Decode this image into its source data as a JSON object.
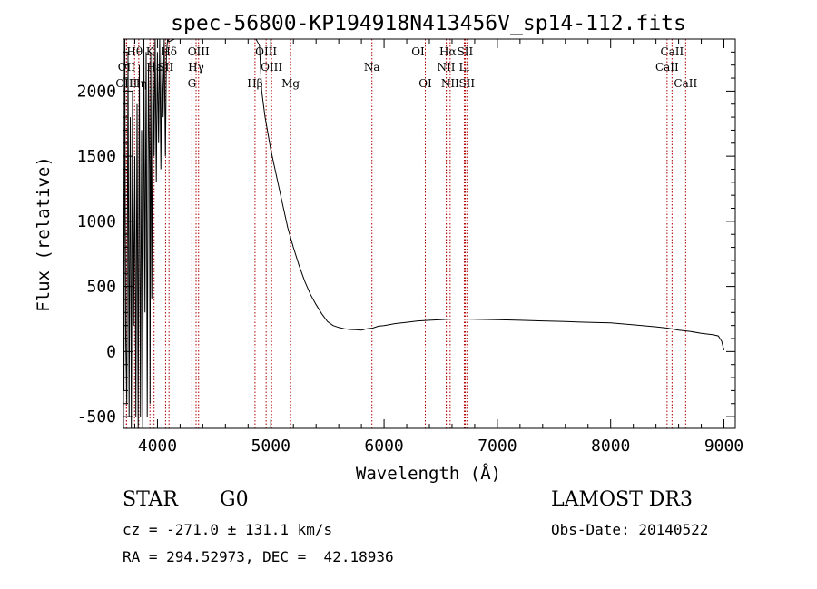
{
  "chart_data": {
    "type": "line",
    "title": "spec-56800-KP194918N413456V_sp14-112.fits",
    "xlabel": "Wavelength (Å)",
    "ylabel": "Flux (relative)",
    "xlim": [
      3700,
      9100
    ],
    "ylim": [
      -590,
      2400
    ],
    "xticks": [
      4000,
      5000,
      6000,
      7000,
      8000,
      9000
    ],
    "yticks": [
      -500,
      0,
      500,
      1000,
      1500,
      2000
    ],
    "grid": false,
    "series": [
      {
        "name": "flux",
        "x": [
          3700,
          3705,
          3712,
          3720,
          3730,
          3740,
          3750,
          3760,
          3770,
          3780,
          3790,
          3800,
          3810,
          3820,
          3830,
          3840,
          3850,
          3860,
          3870,
          3880,
          3890,
          3900,
          3910,
          3920,
          3930,
          3935,
          3940,
          3950,
          3960,
          3970,
          3980,
          3990,
          4000,
          4010,
          4020,
          4030,
          4040,
          4050,
          4060,
          4070,
          4080,
          4090,
          4100,
          4150,
          4200,
          4250,
          4300,
          4350,
          4400,
          4450,
          4500,
          4550,
          4600,
          4650,
          4700,
          4750,
          4800,
          4850,
          4870,
          4900,
          4920,
          4950,
          5000,
          5050,
          5100,
          5150,
          5200,
          5250,
          5300,
          5350,
          5400,
          5450,
          5500,
          5550,
          5600,
          5650,
          5700,
          5750,
          5800,
          5850,
          5900,
          5950,
          6000,
          6100,
          6200,
          6300,
          6400,
          6500,
          6600,
          6700,
          6800,
          7000,
          7200,
          7400,
          7600,
          7800,
          8000,
          8200,
          8400,
          8500,
          8600,
          8700,
          8800,
          8900,
          8950,
          8980,
          9000
        ],
        "y": [
          0,
          -300,
          2400,
          100,
          -400,
          2300,
          -500,
          1800,
          -600,
          2000,
          200,
          1500,
          -500,
          1900,
          -600,
          2200,
          -500,
          1700,
          -600,
          2400,
          300,
          2300,
          -500,
          2200,
          1400,
          -400,
          2300,
          400,
          2400,
          1500,
          2400,
          1300,
          2300,
          1600,
          2400,
          1400,
          2300,
          1800,
          2400,
          1500,
          2300,
          2400,
          2380,
          2400,
          2400,
          2400,
          2400,
          2400,
          2400,
          2400,
          2400,
          2400,
          2400,
          2400,
          2400,
          2400,
          2400,
          2400,
          2400,
          2350,
          2000,
          1800,
          1550,
          1350,
          1150,
          950,
          800,
          660,
          540,
          440,
          360,
          290,
          230,
          200,
          185,
          175,
          170,
          168,
          165,
          175,
          180,
          195,
          200,
          215,
          225,
          235,
          240,
          245,
          250,
          250,
          248,
          245,
          240,
          235,
          230,
          225,
          220,
          205,
          190,
          180,
          165,
          155,
          140,
          130,
          120,
          80,
          10
        ]
      }
    ],
    "lines": [
      {
        "label": "Hθ",
        "wavelength": 3798,
        "row": 1
      },
      {
        "label": "K",
        "wavelength": 3934,
        "row": 1
      },
      {
        "label": "Hδ",
        "wavelength": 4102,
        "row": 1
      },
      {
        "label": "OIII",
        "wavelength": 4363,
        "row": 1
      },
      {
        "label": "OII",
        "wavelength": 3727,
        "row": 2
      },
      {
        "label": "Hε",
        "wavelength": 3970,
        "row": 2
      },
      {
        "label": "SII",
        "wavelength": 4072,
        "row": 2
      },
      {
        "label": "Hγ",
        "wavelength": 4341,
        "row": 2
      },
      {
        "label": "OIII",
        "wavelength": 3727,
        "row": 3
      },
      {
        "label": "Hη",
        "wavelength": 3835,
        "row": 3
      },
      {
        "label": "G",
        "wavelength": 4304,
        "row": 3
      },
      {
        "label": "OIII",
        "wavelength": 4959,
        "row": 1
      },
      {
        "label": "OIII",
        "wavelength": 5007,
        "row": 2
      },
      {
        "label": "Hβ",
        "wavelength": 4861,
        "row": 3
      },
      {
        "label": "Mg",
        "wavelength": 5175,
        "row": 3
      },
      {
        "label": "Na",
        "wavelength": 5893,
        "row": 2
      },
      {
        "label": "OI",
        "wavelength": 6300,
        "row": 1
      },
      {
        "label": "OI",
        "wavelength": 6364,
        "row": 3
      },
      {
        "label": "Hα",
        "wavelength": 6563,
        "row": 1
      },
      {
        "label": "SII",
        "wavelength": 6716,
        "row": 1
      },
      {
        "label": "NII",
        "wavelength": 6548,
        "row": 2
      },
      {
        "label": "Li",
        "wavelength": 6708,
        "row": 2
      },
      {
        "label": "NII",
        "wavelength": 6583,
        "row": 3
      },
      {
        "label": "SII",
        "wavelength": 6731,
        "row": 3
      },
      {
        "label": "CaII",
        "wavelength": 8542,
        "row": 1
      },
      {
        "label": "CaII",
        "wavelength": 8498,
        "row": 2
      },
      {
        "label": "CaII",
        "wavelength": 8662,
        "row": 3
      }
    ]
  },
  "info": {
    "object_class": "STAR",
    "subclass": "G0",
    "survey": "LAMOST DR3",
    "velocity": "cz = -271.0 ± 131.1 km/s",
    "obs_date": "Obs-Date: 20140522",
    "coords": "RA = 294.52973, DEC =  42.18936"
  },
  "colors": {
    "spectrum": "#000000",
    "line_markers": "#b00000",
    "axes": "#000000"
  }
}
